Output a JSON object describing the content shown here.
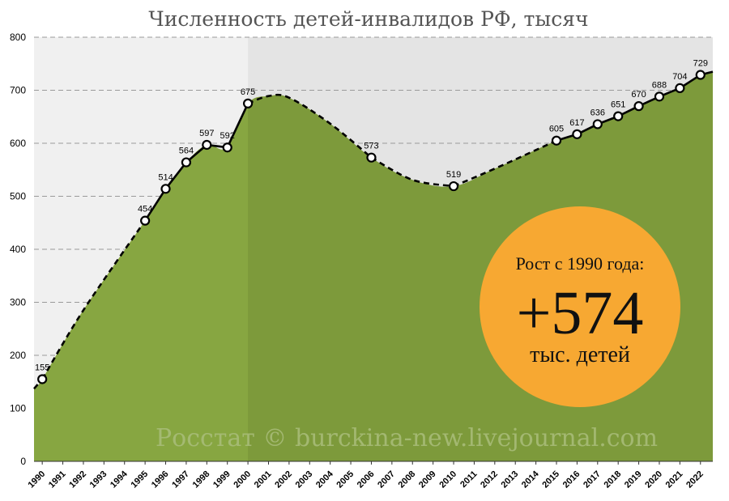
{
  "chart_data": {
    "type": "area",
    "title": "Численность детей-инвалидов РФ, тысяч",
    "xlabel": "",
    "ylabel": "",
    "ylim": [
      0,
      800
    ],
    "yticks": [
      0,
      100,
      200,
      300,
      400,
      500,
      600,
      700,
      800
    ],
    "grid": true,
    "categories": [
      "1990",
      "1991",
      "1992",
      "1993",
      "1994",
      "1995",
      "1996",
      "1997",
      "1998",
      "1999",
      "2000",
      "2001",
      "2002",
      "2003",
      "2004",
      "2005",
      "2006",
      "2007",
      "2008",
      "2009",
      "2010",
      "2011",
      "2012",
      "2013",
      "2014",
      "2015",
      "2016",
      "2017",
      "2018",
      "2019",
      "2020",
      "2021",
      "2022"
    ],
    "labeled_points": [
      {
        "x": 1990,
        "y": 155,
        "label": "155"
      },
      {
        "x": 1995,
        "y": 454,
        "label": "454"
      },
      {
        "x": 1996,
        "y": 514,
        "label": "514"
      },
      {
        "x": 1997,
        "y": 564,
        "label": "564"
      },
      {
        "x": 1998,
        "y": 597,
        "label": "597"
      },
      {
        "x": 1999,
        "y": 592,
        "label": "592"
      },
      {
        "x": 2000,
        "y": 675,
        "label": "675"
      },
      {
        "x": 2006,
        "y": 573,
        "label": "573"
      },
      {
        "x": 2010,
        "y": 519,
        "label": "519"
      },
      {
        "x": 2015,
        "y": 605,
        "label": "605"
      },
      {
        "x": 2016,
        "y": 617,
        "label": "617"
      },
      {
        "x": 2017,
        "y": 636,
        "label": "636"
      },
      {
        "x": 2018,
        "y": 651,
        "label": "651"
      },
      {
        "x": 2019,
        "y": 670,
        "label": "670"
      },
      {
        "x": 2020,
        "y": 688,
        "label": "688"
      },
      {
        "x": 2021,
        "y": 704,
        "label": "704"
      },
      {
        "x": 2022,
        "y": 729,
        "label": "729"
      }
    ],
    "interpolated_curve": [
      {
        "x": 1989.6,
        "y": 137
      },
      {
        "x": 1990,
        "y": 155
      },
      {
        "x": 1992,
        "y": 285
      },
      {
        "x": 1995,
        "y": 454
      },
      {
        "x": 1996,
        "y": 514
      },
      {
        "x": 1997,
        "y": 564
      },
      {
        "x": 1998,
        "y": 597
      },
      {
        "x": 1999,
        "y": 592
      },
      {
        "x": 2000,
        "y": 675
      },
      {
        "x": 2001,
        "y": 689
      },
      {
        "x": 2002,
        "y": 686
      },
      {
        "x": 2004,
        "y": 637
      },
      {
        "x": 2006,
        "y": 573
      },
      {
        "x": 2008,
        "y": 531
      },
      {
        "x": 2010,
        "y": 519
      },
      {
        "x": 2012,
        "y": 552
      },
      {
        "x": 2015,
        "y": 605
      },
      {
        "x": 2016,
        "y": 617
      },
      {
        "x": 2017,
        "y": 636
      },
      {
        "x": 2018,
        "y": 651
      },
      {
        "x": 2019,
        "y": 670
      },
      {
        "x": 2020,
        "y": 688
      },
      {
        "x": 2021,
        "y": 704
      },
      {
        "x": 2022,
        "y": 729
      },
      {
        "x": 2022.6,
        "y": 735
      }
    ],
    "fill_color": "#7d9a3b",
    "fill_color_early": "#87a641",
    "background_before_2000": "#f0f0f0",
    "background_after_2000": "#e4e4e4",
    "line_color": "#000000",
    "callout": {
      "line1": "Рост с 1990 года:",
      "line2": "+574",
      "line3": "тыс. детей",
      "color": "#f7a832"
    },
    "watermark": "Росстат © burckina-new.livejournal.com"
  }
}
